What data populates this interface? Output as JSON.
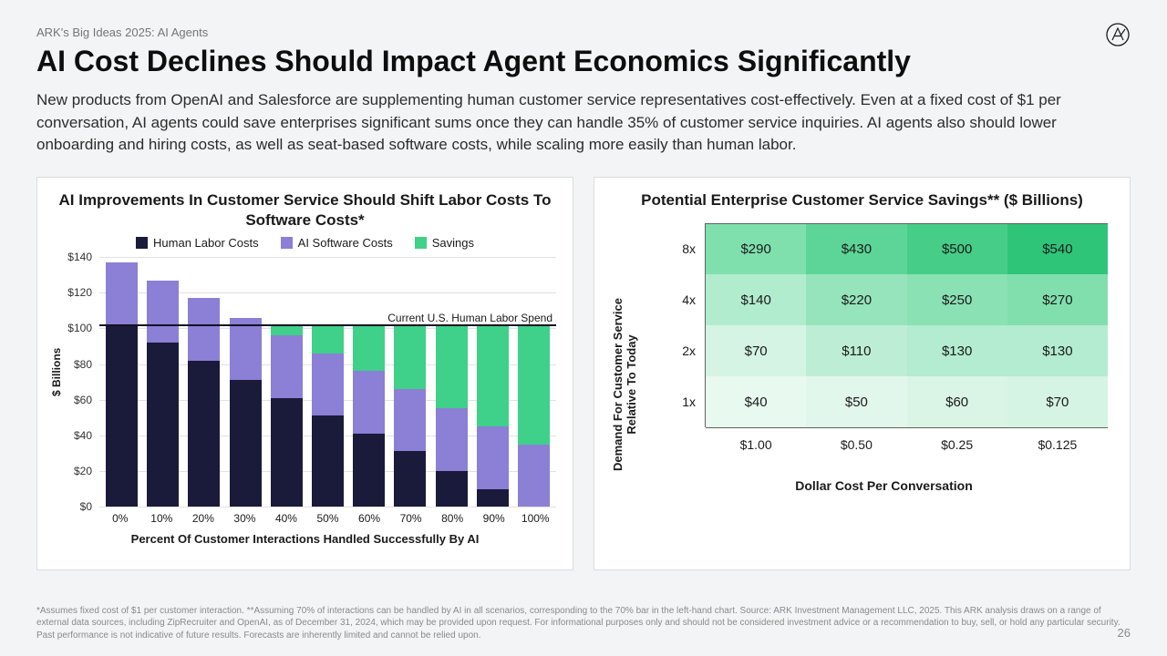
{
  "breadcrumb": "ARK's Big Ideas 2025: AI Agents",
  "title": "AI Cost Declines Should Impact Agent Economics Significantly",
  "subtitle": "New products from OpenAI and Salesforce are supplementing human customer service representatives cost-effectively. Even at a fixed cost of $1 per conversation, AI agents could save enterprises significant sums once they can handle 35% of customer service inquiries. AI agents also should lower onboarding and hiring costs, as well as seat-based software costs, while scaling more easily than human labor.",
  "left_chart": {
    "title": "AI Improvements In Customer Service Should Shift Labor Costs To Software Costs*",
    "legend": [
      {
        "label": "Human Labor Costs",
        "color": "#1a1a3a"
      },
      {
        "label": "AI Software Costs",
        "color": "#8b7fd6"
      },
      {
        "label": "Savings",
        "color": "#3fd089"
      }
    ],
    "yaxis_title": "$ Billions",
    "ymax": 140,
    "yticks": [
      0,
      20,
      40,
      60,
      80,
      100,
      120,
      140
    ],
    "ytick_labels": [
      "$0",
      "$20",
      "$40",
      "$60",
      "$80",
      "$100",
      "$120",
      "$140"
    ],
    "reference_line": {
      "value": 102,
      "label": "Current U.S. Human Labor Spend"
    },
    "xaxis_title": "Percent Of Customer Interactions Handled Successfully By AI",
    "categories": [
      "0%",
      "10%",
      "20%",
      "30%",
      "40%",
      "50%",
      "60%",
      "70%",
      "80%",
      "90%",
      "100%"
    ],
    "series": {
      "human": [
        102,
        92,
        82,
        71,
        61,
        51,
        41,
        31,
        20,
        10,
        0
      ],
      "ai": [
        35,
        35,
        35,
        35,
        35,
        35,
        35,
        35,
        35,
        35,
        35
      ],
      "savings": [
        0,
        0,
        0,
        0,
        6,
        16,
        26,
        36,
        47,
        57,
        67
      ]
    },
    "colors": {
      "human": "#1a1a3a",
      "ai": "#8b7fd6",
      "savings": "#3fd089"
    },
    "grid_color": "#e2e2e2",
    "background": "#ffffff"
  },
  "right_chart": {
    "title": "Potential Enterprise Customer Service Savings** ($ Billions)",
    "yaxis_title": "Demand For Customer Service Relative To Today",
    "xaxis_title": "Dollar Cost Per Conversation",
    "row_labels": [
      "8x",
      "4x",
      "2x",
      "1x"
    ],
    "col_labels": [
      "$1.00",
      "$0.50",
      "$0.25",
      "$0.125"
    ],
    "cells": [
      [
        "$290",
        "$430",
        "$500",
        "$540"
      ],
      [
        "$140",
        "$220",
        "$250",
        "$270"
      ],
      [
        "$70",
        "$110",
        "$130",
        "$130"
      ],
      [
        "$40",
        "$50",
        "$60",
        "$70"
      ]
    ],
    "cell_colors": [
      [
        "#7fe0ae",
        "#5dd598",
        "#46cd88",
        "#2fc578"
      ],
      [
        "#b2ecce",
        "#95e4bc",
        "#8ae1b4",
        "#81dfae"
      ],
      [
        "#d5f4e3",
        "#bdeed5",
        "#b3ecd0",
        "#b3ecd0"
      ],
      [
        "#e8f9f0",
        "#e2f7eb",
        "#daf5e6",
        "#d5f4e3"
      ]
    ],
    "border_color": "#606060"
  },
  "footnote": "*Assumes fixed cost of $1 per customer interaction. **Assuming 70% of interactions can be handled by AI in all scenarios, corresponding to the 70% bar in the left-hand chart. Source: ARK Investment Management LLC, 2025. This ARK analysis draws on a range of external data sources, including ZipRecruiter and OpenAI, as of December 31, 2024, which may be provided upon request. For informational purposes only and should not be considered investment advice or a recommendation to buy, sell, or hold any particular security. Past performance is not indicative of future results. Forecasts are inherently limited and cannot be relied upon.",
  "page_number": "26"
}
